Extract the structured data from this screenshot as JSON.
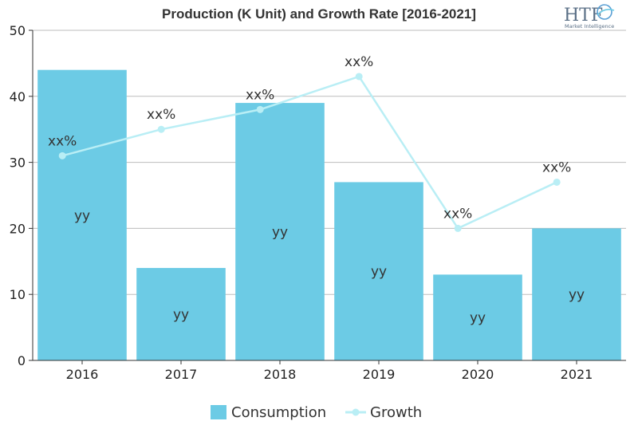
{
  "chart_data": {
    "type": "bar",
    "title": "Production (K Unit) and Growth Rate [2016-2021]",
    "categories": [
      "2016",
      "2017",
      "2018",
      "2019",
      "2020",
      "2021"
    ],
    "ylim": [
      0,
      50
    ],
    "yticks": [
      0,
      10,
      20,
      30,
      40,
      50
    ],
    "grid": true,
    "legend": "bottom-center",
    "series": [
      {
        "name": "Consumption",
        "type": "bar",
        "color": "#6ccbe5",
        "values": [
          44,
          14,
          39,
          27,
          13,
          20
        ],
        "labels": [
          "yy",
          "yy",
          "yy",
          "yy",
          "yy",
          "yy"
        ]
      },
      {
        "name": "Growth",
        "type": "line",
        "color": "#b9eef5",
        "values": [
          31,
          35,
          38,
          43,
          20,
          27
        ],
        "labels": [
          "xx%",
          "xx%",
          "xx%",
          "xx%",
          "xx%",
          "xx%"
        ]
      }
    ]
  },
  "logo": {
    "main": "HTF",
    "sub": "Market Intelligence"
  }
}
